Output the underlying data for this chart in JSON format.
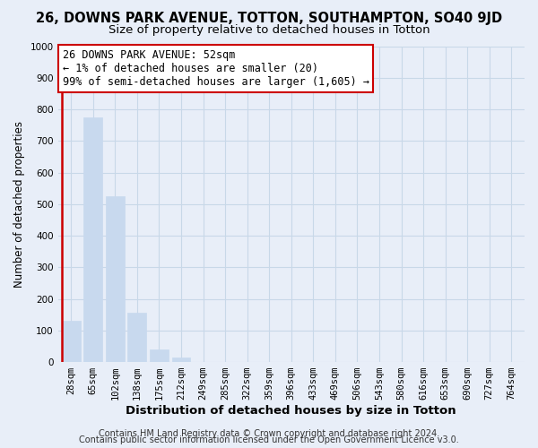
{
  "title": "26, DOWNS PARK AVENUE, TOTTON, SOUTHAMPTON, SO40 9JD",
  "subtitle": "Size of property relative to detached houses in Totton",
  "xlabel": "Distribution of detached houses by size in Totton",
  "ylabel": "Number of detached properties",
  "bar_labels": [
    "28sqm",
    "65sqm",
    "102sqm",
    "138sqm",
    "175sqm",
    "212sqm",
    "249sqm",
    "285sqm",
    "322sqm",
    "359sqm",
    "396sqm",
    "433sqm",
    "469sqm",
    "506sqm",
    "543sqm",
    "580sqm",
    "616sqm",
    "653sqm",
    "690sqm",
    "727sqm",
    "764sqm"
  ],
  "bar_values": [
    130,
    775,
    525,
    155,
    40,
    15,
    0,
    0,
    0,
    0,
    0,
    0,
    0,
    0,
    0,
    0,
    0,
    0,
    0,
    0,
    0
  ],
  "bar_color": "#c8d9ee",
  "highlight_color": "#cc0000",
  "annotation_box_text": "26 DOWNS PARK AVENUE: 52sqm\n← 1% of detached houses are smaller (20)\n99% of semi-detached houses are larger (1,605) →",
  "ylim": [
    0,
    1000
  ],
  "yticks": [
    0,
    100,
    200,
    300,
    400,
    500,
    600,
    700,
    800,
    900,
    1000
  ],
  "grid_color": "#c8d8e8",
  "footer_line1": "Contains HM Land Registry data © Crown copyright and database right 2024.",
  "footer_line2": "Contains public sector information licensed under the Open Government Licence v3.0.",
  "bg_color": "#e8eef8",
  "plot_bg_color": "#e8eef8",
  "annotation_fontsize": 8.5,
  "title_fontsize": 10.5,
  "subtitle_fontsize": 9.5,
  "xlabel_fontsize": 9.5,
  "ylabel_fontsize": 8.5,
  "tick_fontsize": 7.5,
  "footer_fontsize": 7.0
}
